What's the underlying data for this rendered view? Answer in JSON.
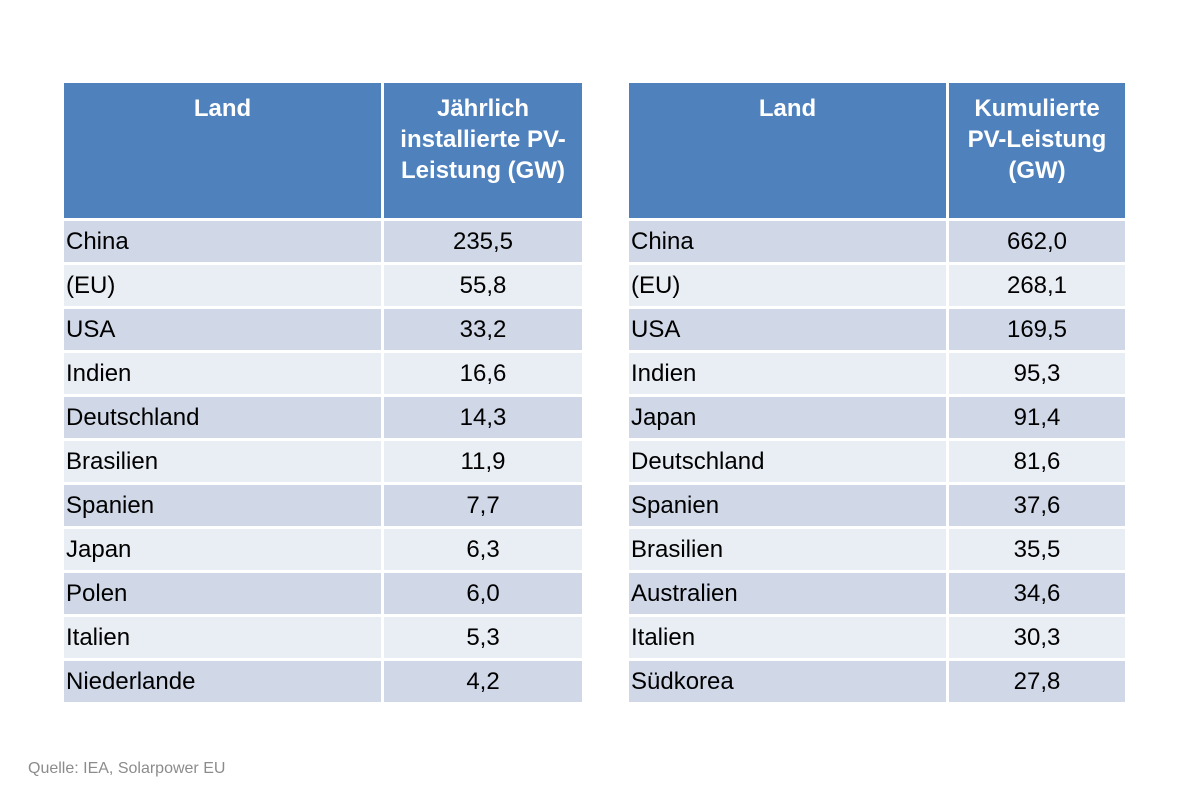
{
  "left_table": {
    "headers": [
      "Land",
      "Jährlich installierte PV-Leistung (GW)"
    ],
    "rows": [
      [
        "China",
        "235,5"
      ],
      [
        "(EU)",
        "55,8"
      ],
      [
        "USA",
        "33,2"
      ],
      [
        "Indien",
        "16,6"
      ],
      [
        "Deutschland",
        "14,3"
      ],
      [
        "Brasilien",
        "11,9"
      ],
      [
        "Spanien",
        "7,7"
      ],
      [
        "Japan",
        "6,3"
      ],
      [
        "Polen",
        "6,0"
      ],
      [
        "Italien",
        "5,3"
      ],
      [
        "Niederlande",
        "4,2"
      ]
    ]
  },
  "right_table": {
    "headers": [
      "Land",
      "Kumulierte PV-Leistung (GW)"
    ],
    "rows": [
      [
        "China",
        "662,0"
      ],
      [
        "(EU)",
        "268,1"
      ],
      [
        "USA",
        "169,5"
      ],
      [
        "Indien",
        "95,3"
      ],
      [
        "Japan",
        "91,4"
      ],
      [
        "Deutschland",
        "81,6"
      ],
      [
        "Spanien",
        "37,6"
      ],
      [
        "Brasilien",
        "35,5"
      ],
      [
        "Australien",
        "34,6"
      ],
      [
        "Italien",
        "30,3"
      ],
      [
        "Südkorea",
        "27,8"
      ]
    ]
  },
  "source": "Quelle: IEA, Solarpower EU",
  "colors": {
    "header_bg": "#4f81bd",
    "row_odd_bg": "#d0d8e8",
    "row_even_bg": "#e9edf4",
    "source_text": "#8c8c8c"
  }
}
